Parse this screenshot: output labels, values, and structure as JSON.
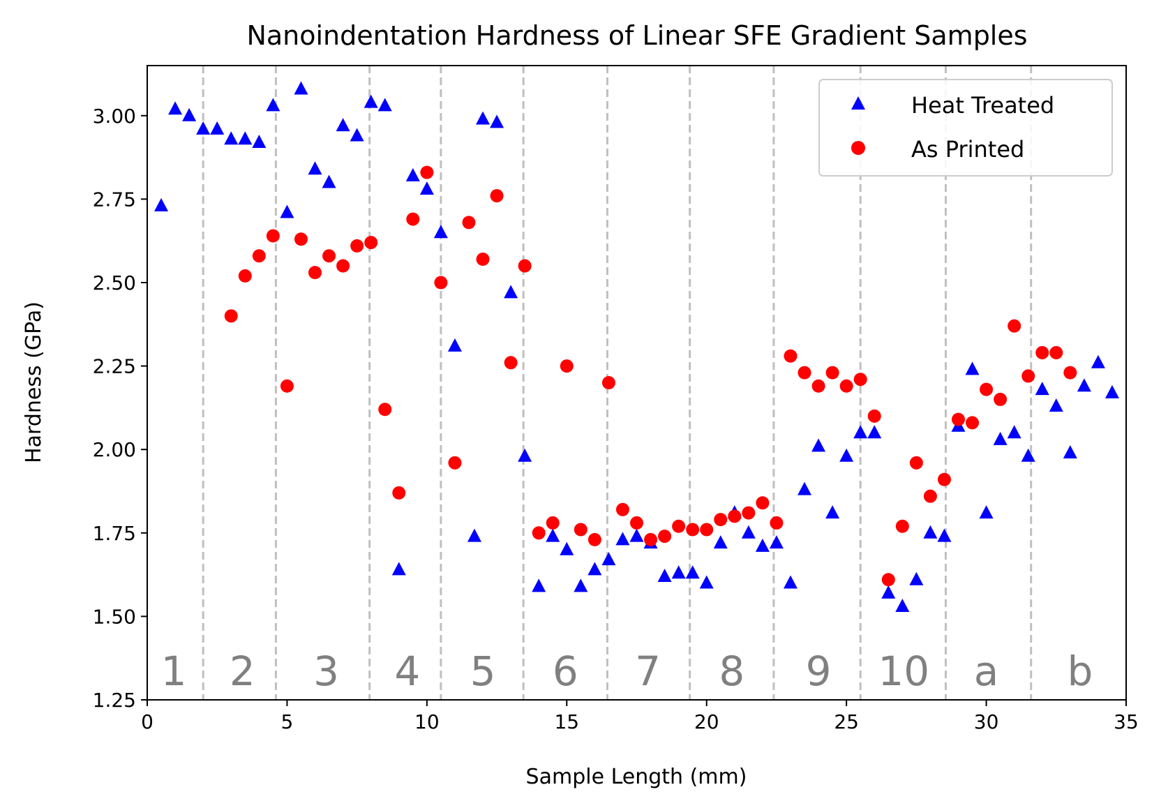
{
  "chart_data": {
    "type": "scatter",
    "title": "Nanoindentation Hardness of Linear SFE Gradient Samples",
    "xlabel": "Sample Length (mm)",
    "ylabel": "Hardness (GPa)",
    "xlim": [
      0,
      35
    ],
    "ylim": [
      1.25,
      3.15
    ],
    "xticks": [
      0,
      5,
      10,
      15,
      20,
      25,
      30,
      35
    ],
    "xtick_labels": [
      "0",
      "5",
      "10",
      "15",
      "20",
      "25",
      "30",
      "35"
    ],
    "yticks": [
      1.25,
      1.5,
      1.75,
      2.0,
      2.25,
      2.5,
      2.75,
      3.0
    ],
    "ytick_labels": [
      "1.25",
      "1.50",
      "1.75",
      "2.00",
      "2.25",
      "2.50",
      "2.75",
      "3.00"
    ],
    "boundaries": [
      2.0,
      4.6,
      7.95,
      10.5,
      13.45,
      16.45,
      19.4,
      22.4,
      25.5,
      28.55,
      31.6
    ],
    "regions": [
      {
        "label": "1",
        "x": 0.95
      },
      {
        "label": "2",
        "x": 3.4
      },
      {
        "label": "3",
        "x": 6.4
      },
      {
        "label": "4",
        "x": 9.3
      },
      {
        "label": "5",
        "x": 12.0
      },
      {
        "label": "6",
        "x": 14.95
      },
      {
        "label": "7",
        "x": 17.9
      },
      {
        "label": "8",
        "x": 20.9
      },
      {
        "label": "9",
        "x": 24.0
      },
      {
        "label": "10",
        "x": 27.05
      },
      {
        "label": "a",
        "x": 30.0
      },
      {
        "label": "b",
        "x": 33.35
      }
    ],
    "legend_position": "upper-right",
    "colors": {
      "heat_treated": "#0000ff",
      "as_printed": "#ff0000",
      "boundary": "#bfbfbf",
      "region_label": "#808080"
    },
    "series": [
      {
        "name": "Heat Treated",
        "marker": "triangle",
        "color": "#0000ff",
        "x": [
          0.5,
          1.0,
          1.5,
          2.0,
          2.5,
          3.0,
          3.5,
          4.0,
          4.5,
          5.0,
          5.5,
          6.0,
          6.5,
          7.0,
          7.5,
          8.0,
          8.5,
          9.0,
          9.5,
          10.0,
          10.5,
          11.0,
          11.7,
          12.0,
          12.5,
          13.0,
          13.5,
          14.0,
          14.5,
          15.0,
          15.5,
          16.0,
          16.5,
          17.0,
          17.5,
          18.0,
          18.5,
          19.0,
          19.5,
          20.0,
          20.5,
          21.0,
          21.5,
          22.0,
          22.5,
          23.0,
          23.5,
          24.0,
          24.5,
          25.0,
          25.5,
          26.0,
          26.5,
          27.0,
          27.5,
          28.0,
          28.5,
          29.0,
          29.5,
          30.0,
          30.5,
          31.0,
          31.5,
          32.0,
          32.5,
          33.0,
          33.5,
          34.0,
          34.5
        ],
        "y": [
          2.73,
          3.02,
          3.0,
          2.96,
          2.96,
          2.93,
          2.93,
          2.92,
          3.03,
          2.71,
          3.08,
          2.84,
          2.8,
          2.97,
          2.94,
          3.04,
          3.03,
          1.64,
          2.82,
          2.78,
          2.65,
          2.31,
          1.74,
          2.99,
          2.98,
          2.47,
          1.98,
          1.59,
          1.74,
          1.7,
          1.59,
          1.64,
          1.67,
          1.73,
          1.74,
          1.72,
          1.62,
          1.63,
          1.63,
          1.6,
          1.72,
          1.81,
          1.75,
          1.71,
          1.72,
          1.6,
          1.88,
          2.01,
          1.81,
          1.98,
          2.05,
          2.05,
          1.57,
          1.53,
          1.61,
          1.75,
          1.74,
          2.07,
          2.24,
          1.81,
          2.03,
          2.05,
          1.98,
          2.18,
          2.13,
          1.99,
          2.19,
          2.26,
          2.17
        ]
      },
      {
        "name": "As Printed",
        "marker": "circle",
        "color": "#ff0000",
        "x": [
          3.0,
          3.5,
          4.0,
          4.5,
          5.0,
          5.5,
          6.0,
          6.5,
          7.0,
          7.5,
          8.0,
          8.5,
          9.0,
          9.5,
          10.0,
          10.5,
          11.0,
          11.5,
          12.0,
          12.5,
          13.0,
          13.5,
          14.0,
          14.5,
          15.0,
          15.5,
          16.0,
          16.5,
          17.0,
          17.5,
          18.0,
          18.5,
          19.0,
          19.5,
          20.0,
          20.5,
          21.0,
          21.5,
          22.0,
          22.5,
          23.0,
          23.5,
          24.0,
          24.5,
          25.0,
          25.5,
          26.0,
          26.5,
          27.0,
          27.5,
          28.0,
          28.5,
          29.0,
          29.5,
          30.0,
          30.5,
          31.0,
          31.5,
          32.0,
          32.5,
          33.0
        ],
        "y": [
          2.4,
          2.52,
          2.58,
          2.64,
          2.19,
          2.63,
          2.53,
          2.58,
          2.55,
          2.61,
          2.62,
          2.12,
          1.87,
          2.69,
          2.83,
          2.5,
          1.96,
          2.68,
          2.57,
          2.76,
          2.26,
          2.55,
          1.75,
          1.78,
          2.25,
          1.76,
          1.73,
          2.2,
          1.82,
          1.78,
          1.73,
          1.74,
          1.77,
          1.76,
          1.76,
          1.79,
          1.8,
          1.81,
          1.84,
          1.78,
          2.28,
          2.23,
          2.19,
          2.23,
          2.19,
          2.21,
          2.1,
          1.61,
          1.77,
          1.96,
          1.86,
          1.91,
          2.09,
          2.08,
          2.18,
          2.15,
          2.37,
          2.22,
          2.29,
          2.29,
          2.23
        ]
      }
    ]
  }
}
